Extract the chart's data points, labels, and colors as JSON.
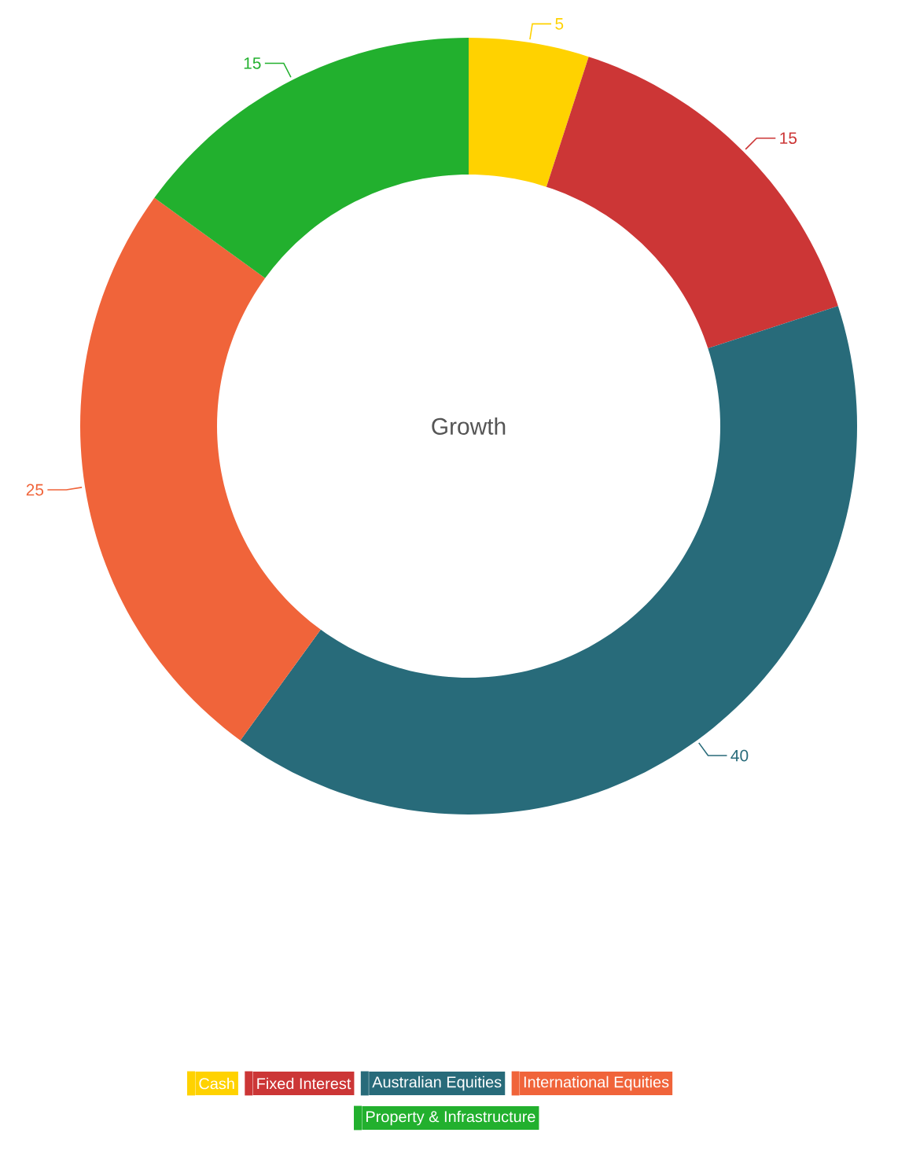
{
  "chart_data": {
    "type": "donut",
    "title": "Growth",
    "categories": [
      "Cash",
      "Fixed Interest",
      "Australian Equities",
      "International Equities",
      "Property & Infrastructure"
    ],
    "values": [
      5,
      15,
      40,
      25,
      15
    ],
    "colors": [
      "#ffd200",
      "#cc3636",
      "#286b7a",
      "#f0643a",
      "#22b02e"
    ],
    "data_labels": true,
    "legend": "bottom"
  }
}
